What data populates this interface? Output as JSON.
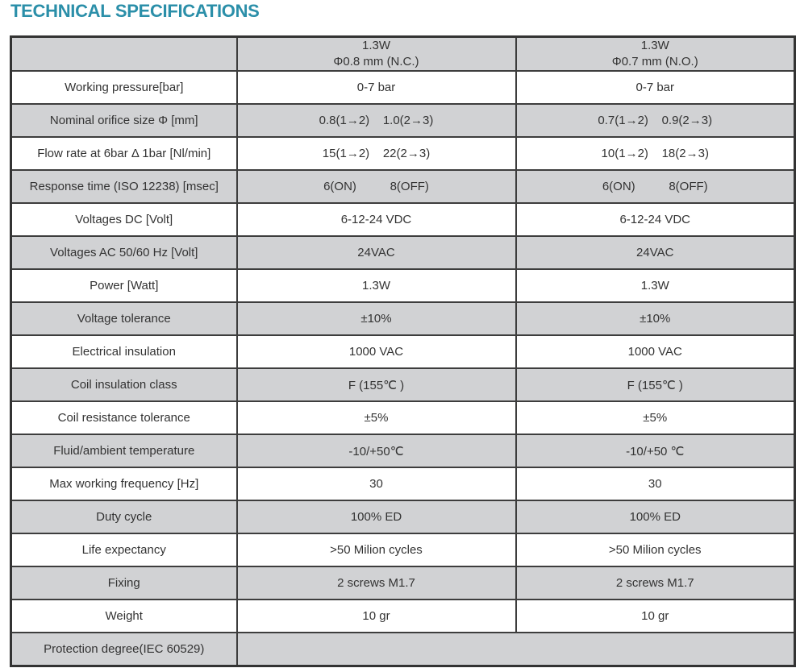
{
  "page": {
    "title": "TECHNICAL SPECIFICATIONS"
  },
  "colors": {
    "accent": "#2b8fa9",
    "row_shade": "#d1d2d4",
    "border": "#3d3d3d"
  },
  "table": {
    "corner_label": "",
    "columns": [
      {
        "header": "1.3W\nΦ0.8 mm (N.C.)"
      },
      {
        "header": "1.3W\nΦ0.7 mm (N.O.)"
      }
    ],
    "rows": [
      {
        "label": "Working pressure[bar]",
        "values": [
          "0-7 bar",
          "0-7 bar"
        ]
      },
      {
        "label": "Nominal orifice size Φ [mm]",
        "values": [
          "0.8(1→2)    1.0(2→3)",
          "0.7(1→2)    0.9(2→3)"
        ]
      },
      {
        "label": "Flow rate at 6bar Δ 1bar [Nl/min]",
        "values": [
          "15(1→2)    22(2→3)",
          "10(1→2)    18(2→3)"
        ]
      },
      {
        "label": "Response time (ISO 12238) [msec]",
        "values": [
          "6(ON)          8(OFF)",
          "6(ON)          8(OFF)"
        ]
      },
      {
        "label": "Voltages DC [Volt]",
        "values": [
          "6-12-24 VDC",
          "6-12-24 VDC"
        ]
      },
      {
        "label": "Voltages AC 50/60 Hz [Volt]",
        "values": [
          "24VAC",
          "24VAC"
        ]
      },
      {
        "label": "Power [Watt]",
        "values": [
          "1.3W",
          "1.3W"
        ]
      },
      {
        "label": "Voltage tolerance",
        "values": [
          "±10%",
          "±10%"
        ]
      },
      {
        "label": "Electrical insulation",
        "values": [
          "1000 VAC",
          "1000 VAC"
        ]
      },
      {
        "label": "Coil insulation class",
        "values": [
          "F (155℃ )",
          "F (155℃ )"
        ]
      },
      {
        "label": "Coil resistance tolerance",
        "values": [
          "±5%",
          "±5%"
        ]
      },
      {
        "label": "Fluid/ambient temperature",
        "values": [
          "-10/+50℃",
          "-10/+50 ℃"
        ]
      },
      {
        "label": "Max working frequency [Hz]",
        "values": [
          "30",
          "30"
        ]
      },
      {
        "label": "Duty cycle",
        "values": [
          "100% ED",
          "100% ED"
        ]
      },
      {
        "label": "Life expectancy",
        "values": [
          ">50 Milion cycles",
          ">50 Milion cycles"
        ]
      },
      {
        "label": "Fixing",
        "values": [
          "2 screws M1.7",
          "2 screws M1.7"
        ]
      },
      {
        "label": "Weight",
        "values": [
          "10 gr",
          "10 gr"
        ]
      },
      {
        "label": "Protection degree(IEC 60529)",
        "values": [
          ""
        ],
        "merged": true
      }
    ]
  }
}
